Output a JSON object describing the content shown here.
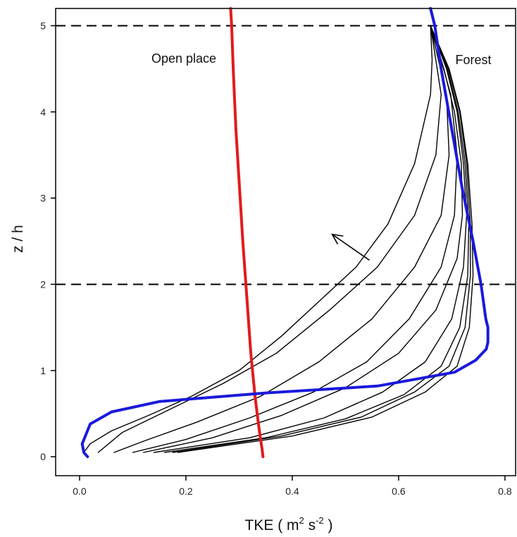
{
  "chart_data": {
    "type": "line",
    "xlabel": {
      "main": "TKE ( m",
      "sup1": "2",
      "mid": " s",
      "sup2": "-2",
      "tail": " )"
    },
    "ylabel": "z / h",
    "xlim": [
      -0.045,
      0.82
    ],
    "ylim": [
      -0.22,
      5.2
    ],
    "xticks": [
      "0.0",
      "0.2",
      "0.4",
      "0.6",
      "0.8"
    ],
    "yticks": [
      "0",
      "1",
      "2",
      "3",
      "4",
      "5"
    ],
    "grid": false,
    "reference_lines": [
      {
        "orientation": "horizontal",
        "y": 5,
        "style": "dashed"
      },
      {
        "orientation": "horizontal",
        "y": 2,
        "style": "dashed"
      }
    ],
    "annotations": [
      {
        "text": "Open place",
        "x": 0.25,
        "y": 4.78
      },
      {
        "text": "Forest",
        "x": 0.757,
        "y": 4.76
      },
      {
        "type": "arrow",
        "from": [
          0.545,
          2.28
        ],
        "to": [
          0.475,
          2.58
        ]
      }
    ],
    "colors": {
      "open_place": "#e31a1c",
      "forest": "#1a1adb",
      "transition": "#000000"
    },
    "series": [
      {
        "color": "#e31a1c",
        "x": [
          0.345,
          0.343,
          0.34,
          0.336,
          0.33,
          0.322,
          0.314,
          0.307,
          0.301,
          0.294,
          0.289,
          0.286,
          0.284
        ],
        "y": [
          0.0,
          0.1,
          0.22,
          0.4,
          0.7,
          1.2,
          1.9,
          2.5,
          3.1,
          3.8,
          4.5,
          5.0,
          5.2
        ]
      },
      {
        "color": "#1a1adb",
        "x": [
          0.66,
          0.668,
          0.68,
          0.7,
          0.72,
          0.74,
          0.755,
          0.764,
          0.768,
          0.768,
          0.765,
          0.745,
          0.705,
          0.56,
          0.35,
          0.15,
          0.06,
          0.02,
          0.005,
          0.008,
          0.015
        ],
        "y": [
          5.2,
          5.0,
          4.5,
          3.8,
          3.1,
          2.5,
          2.0,
          1.6,
          1.5,
          1.33,
          1.25,
          1.12,
          0.98,
          0.82,
          0.74,
          0.64,
          0.52,
          0.38,
          0.15,
          0.05,
          0.0
        ]
      },
      {
        "color": "#000000",
        "x": [
          0.66,
          0.663,
          0.66,
          0.63,
          0.58,
          0.52,
          0.45,
          0.38,
          0.3,
          0.21,
          0.13,
          0.06,
          0.02,
          0.008,
          0.015
        ],
        "y": [
          5.0,
          4.6,
          4.2,
          3.4,
          2.7,
          2.2,
          1.8,
          1.4,
          1.0,
          0.7,
          0.48,
          0.3,
          0.15,
          0.05,
          0.0
        ]
      },
      {
        "color": "#000000",
        "x": [
          0.66,
          0.67,
          0.68,
          0.67,
          0.63,
          0.56,
          0.47,
          0.37,
          0.27,
          0.17,
          0.08,
          0.035
        ],
        "y": [
          5.0,
          4.6,
          4.2,
          3.5,
          2.8,
          2.2,
          1.7,
          1.2,
          0.85,
          0.55,
          0.28,
          0.05
        ]
      },
      {
        "color": "#000000",
        "x": [
          0.66,
          0.675,
          0.69,
          0.695,
          0.68,
          0.63,
          0.55,
          0.45,
          0.34,
          0.22,
          0.12,
          0.065
        ],
        "y": [
          5.0,
          4.6,
          4.2,
          3.5,
          2.8,
          2.2,
          1.6,
          1.1,
          0.7,
          0.4,
          0.18,
          0.05
        ]
      },
      {
        "color": "#000000",
        "x": [
          0.66,
          0.68,
          0.698,
          0.71,
          0.705,
          0.68,
          0.62,
          0.54,
          0.44,
          0.32,
          0.2,
          0.1
        ],
        "y": [
          5.0,
          4.6,
          4.2,
          3.5,
          2.8,
          2.2,
          1.6,
          1.1,
          0.75,
          0.45,
          0.2,
          0.05
        ]
      },
      {
        "color": "#000000",
        "x": [
          0.66,
          0.685,
          0.705,
          0.718,
          0.72,
          0.71,
          0.67,
          0.6,
          0.5,
          0.38,
          0.25,
          0.12
        ],
        "y": [
          5.0,
          4.5,
          4.0,
          3.4,
          2.8,
          2.3,
          1.7,
          1.2,
          0.8,
          0.48,
          0.22,
          0.05
        ]
      },
      {
        "color": "#000000",
        "x": [
          0.66,
          0.69,
          0.71,
          0.722,
          0.728,
          0.722,
          0.7,
          0.65,
          0.57,
          0.46,
          0.32,
          0.14
        ],
        "y": [
          5.0,
          4.5,
          4.0,
          3.4,
          2.8,
          2.2,
          1.6,
          1.1,
          0.75,
          0.45,
          0.22,
          0.05
        ]
      },
      {
        "color": "#000000",
        "x": [
          0.66,
          0.692,
          0.712,
          0.725,
          0.732,
          0.73,
          0.715,
          0.68,
          0.61,
          0.5,
          0.35,
          0.16
        ],
        "y": [
          5.0,
          4.5,
          4.0,
          3.4,
          2.7,
          2.1,
          1.5,
          1.05,
          0.72,
          0.44,
          0.22,
          0.05
        ]
      },
      {
        "color": "#000000",
        "x": [
          0.66,
          0.694,
          0.715,
          0.728,
          0.735,
          0.735,
          0.725,
          0.695,
          0.63,
          0.53,
          0.38,
          0.175
        ],
        "y": [
          5.0,
          4.5,
          4.0,
          3.4,
          2.7,
          2.1,
          1.5,
          1.05,
          0.75,
          0.46,
          0.24,
          0.05
        ]
      },
      {
        "color": "#000000",
        "x": [
          0.66,
          0.695,
          0.716,
          0.73,
          0.738,
          0.74,
          0.733,
          0.71,
          0.65,
          0.55,
          0.4,
          0.185
        ],
        "y": [
          5.0,
          4.5,
          4.0,
          3.4,
          2.7,
          2.1,
          1.5,
          1.05,
          0.75,
          0.46,
          0.24,
          0.05
        ]
      }
    ]
  }
}
